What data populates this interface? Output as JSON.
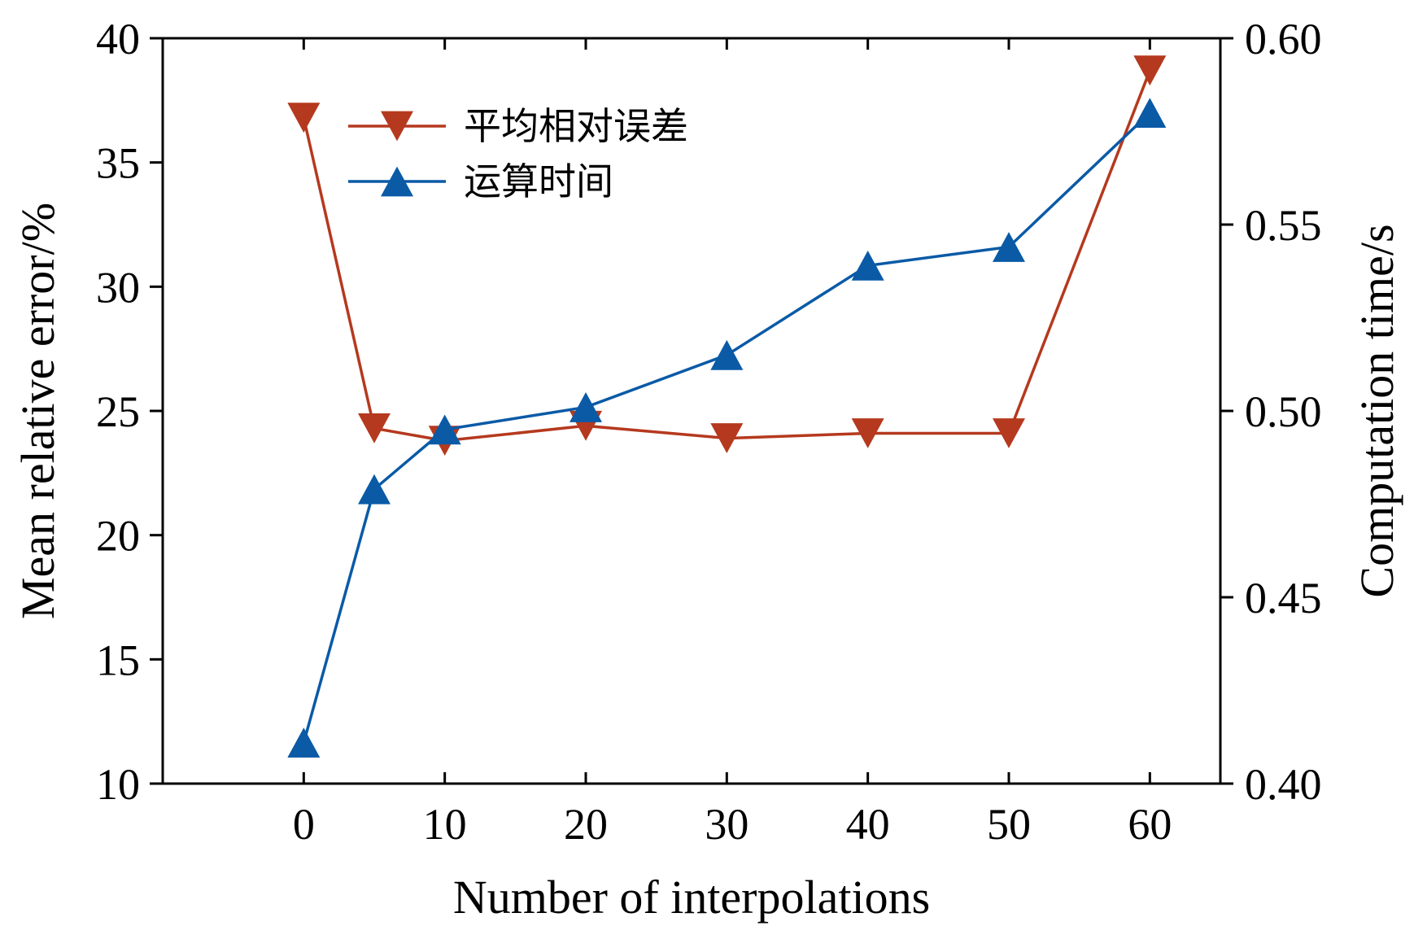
{
  "chart_data": {
    "type": "line",
    "title": "",
    "xlabel": "Number of interpolations",
    "ylabel_left": "Mean relative error/%",
    "ylabel_right": "Computation time/s",
    "xlim": [
      -10,
      65
    ],
    "ylim_left": [
      10,
      40
    ],
    "ylim_right": [
      0.4,
      0.6
    ],
    "x_ticks": [
      0,
      10,
      20,
      30,
      40,
      50,
      60
    ],
    "x_tick_labels": [
      "0",
      "10",
      "20",
      "30",
      "40",
      "50",
      "60"
    ],
    "y_left_ticks": [
      10,
      15,
      20,
      25,
      30,
      35,
      40
    ],
    "y_left_tick_labels": [
      "10",
      "15",
      "20",
      "25",
      "30",
      "35",
      "40"
    ],
    "y_right_ticks": [
      0.4,
      0.45,
      0.5,
      0.55,
      0.6
    ],
    "y_right_tick_labels": [
      "0.40",
      "0.45",
      "0.50",
      "0.55",
      "0.60"
    ],
    "grid": false,
    "legend_position": "top-left-center",
    "series": [
      {
        "name": "平均相对误差",
        "axis": "left",
        "marker": "triangle-down",
        "color": "#b5391e",
        "x": [
          0,
          5,
          10,
          20,
          30,
          40,
          50,
          60
        ],
        "values": [
          36.8,
          24.3,
          23.8,
          24.4,
          23.9,
          24.1,
          24.1,
          38.7
        ]
      },
      {
        "name": "运算时间",
        "axis": "right",
        "marker": "triangle-up",
        "color": "#0a5aa6",
        "x": [
          0,
          5,
          10,
          20,
          30,
          40,
          50,
          60
        ],
        "values": [
          0.411,
          0.479,
          0.495,
          0.501,
          0.515,
          0.539,
          0.544,
          0.58
        ]
      }
    ]
  }
}
